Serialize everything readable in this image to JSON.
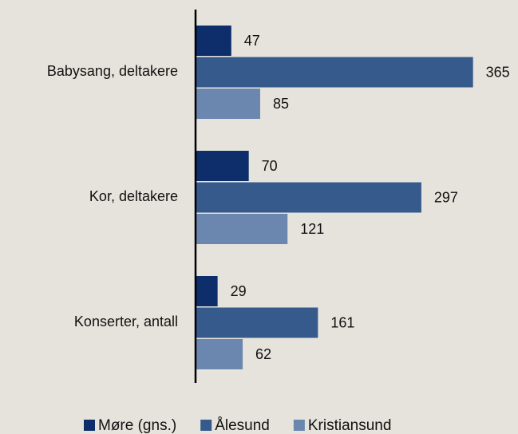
{
  "chart_data": {
    "type": "bar",
    "orientation": "horizontal",
    "categories": [
      "Babysang, deltakere",
      "Kor, deltakere",
      "Konserter, antall"
    ],
    "series": [
      {
        "name": "Møre (gns.)",
        "color": "#0d2d6b",
        "values": [
          47,
          70,
          29
        ]
      },
      {
        "name": "Ålesund",
        "color": "#365a8c",
        "values": [
          365,
          297,
          161
        ]
      },
      {
        "name": "Kristiansund",
        "color": "#6b87b0",
        "values": [
          85,
          121,
          62
        ]
      }
    ],
    "xlim": [
      0,
      400
    ],
    "legend": "bottom",
    "grid": false
  }
}
